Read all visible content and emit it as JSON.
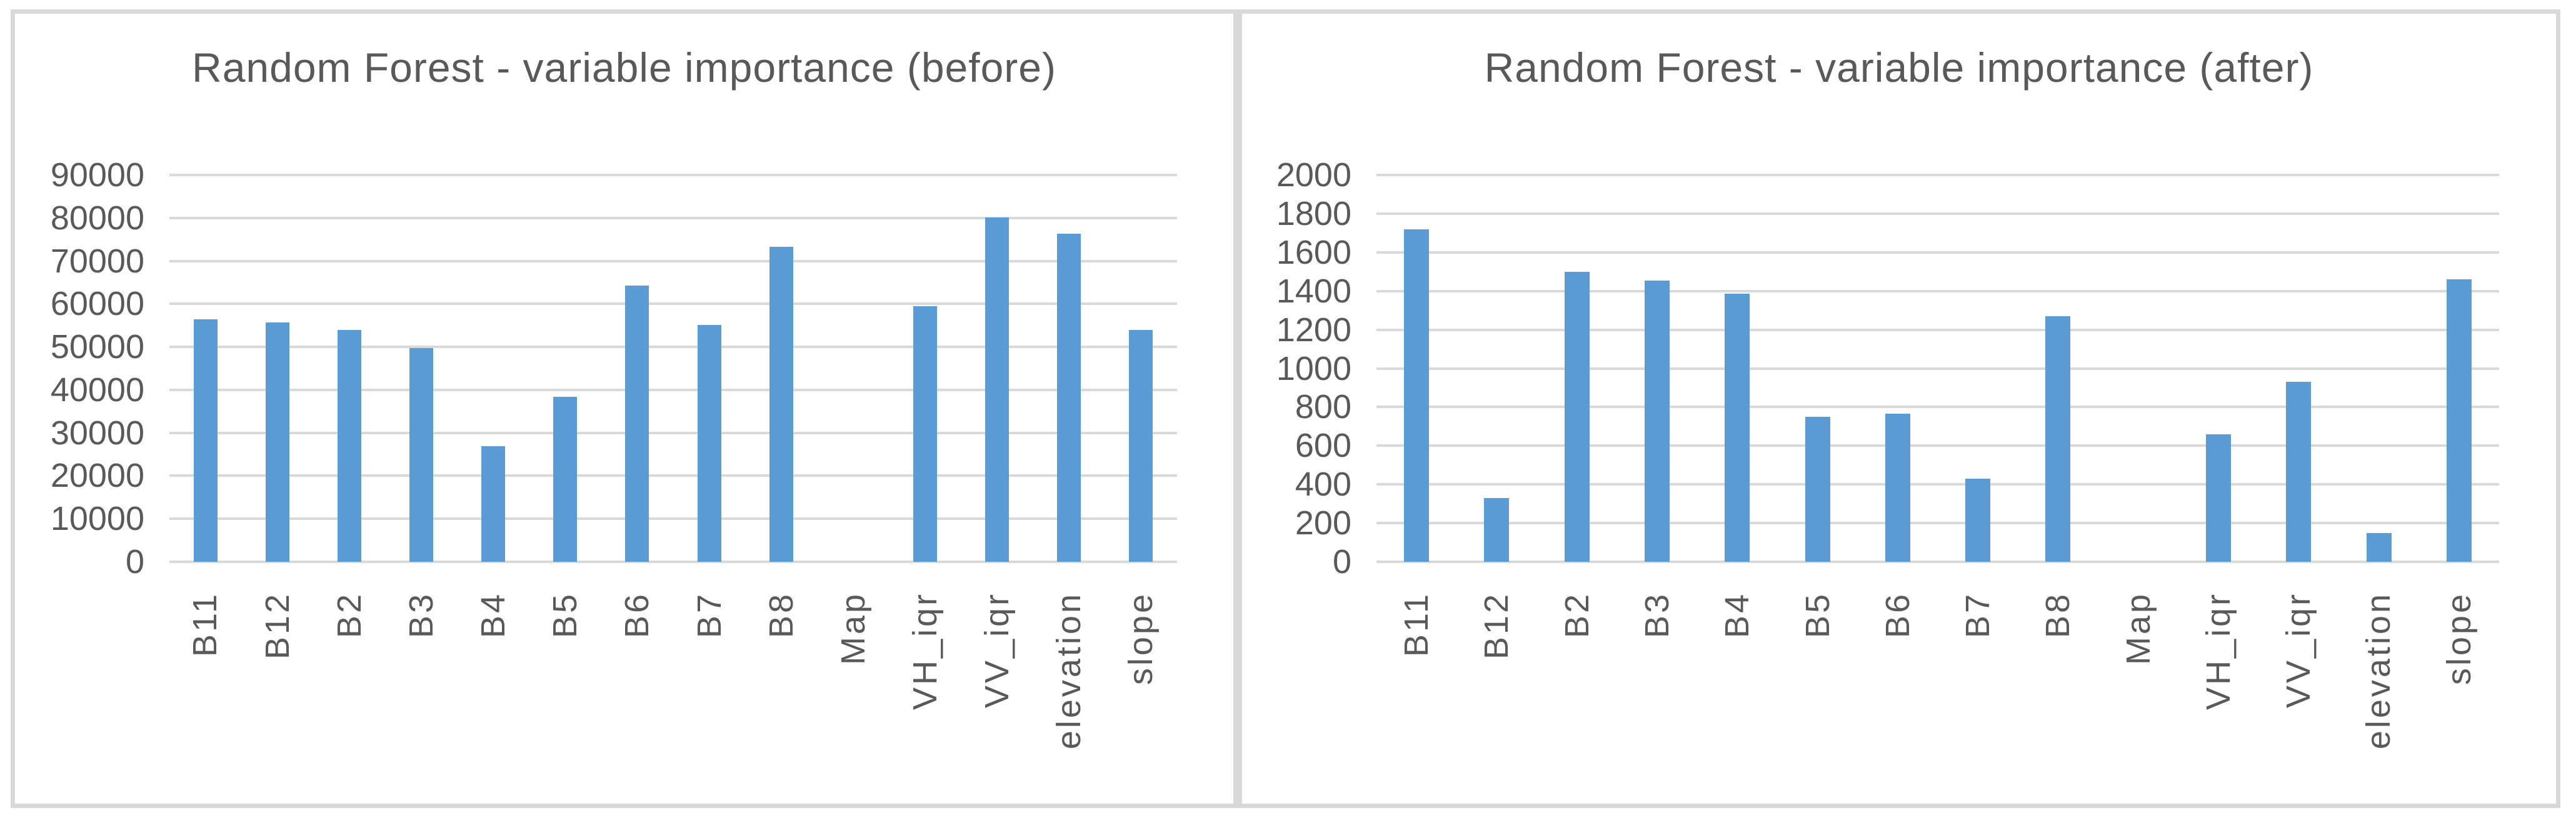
{
  "styles": {
    "bar_color": "#5B9BD5",
    "grid_color": "#D9D9D9",
    "frame_color": "#D9D9D9",
    "text_color": "#595959",
    "background": "#FFFFFF"
  },
  "chart_data": [
    {
      "type": "bar",
      "title": "Random Forest - variable importance (before)",
      "categories": [
        "B11",
        "B12",
        "B2",
        "B3",
        "B4",
        "B5",
        "B6",
        "B7",
        "B8",
        "Map",
        "VH_iqr",
        "VV_iqr",
        "elevation",
        "slope"
      ],
      "values": [
        56400,
        55700,
        54000,
        49800,
        26900,
        38400,
        64300,
        55100,
        73300,
        0,
        59400,
        80100,
        76300,
        54000
      ],
      "xlabel": "",
      "ylabel": "",
      "ylim": [
        0,
        90000
      ],
      "ytick_step": 10000,
      "ytick_labels": [
        "0",
        "10000",
        "20000",
        "30000",
        "40000",
        "50000",
        "60000",
        "70000",
        "80000",
        "90000"
      ],
      "grid": true,
      "legend": false,
      "x_label_rotation_deg": -90
    },
    {
      "type": "bar",
      "title": "Random Forest - variable importance (after)",
      "categories": [
        "B11",
        "B12",
        "B2",
        "B3",
        "B4",
        "B5",
        "B6",
        "B7",
        "B8",
        "Map",
        "VH_iqr",
        "VV_iqr",
        "elevation",
        "slope"
      ],
      "values": [
        1720,
        330,
        1500,
        1455,
        1385,
        750,
        765,
        430,
        1270,
        0,
        660,
        930,
        150,
        1460
      ],
      "xlabel": "",
      "ylabel": "",
      "ylim": [
        0,
        2000
      ],
      "ytick_step": 200,
      "ytick_labels": [
        "0",
        "200",
        "400",
        "600",
        "800",
        "1000",
        "1200",
        "1400",
        "1600",
        "1800",
        "2000"
      ],
      "grid": true,
      "legend": false,
      "x_label_rotation_deg": -90
    }
  ]
}
